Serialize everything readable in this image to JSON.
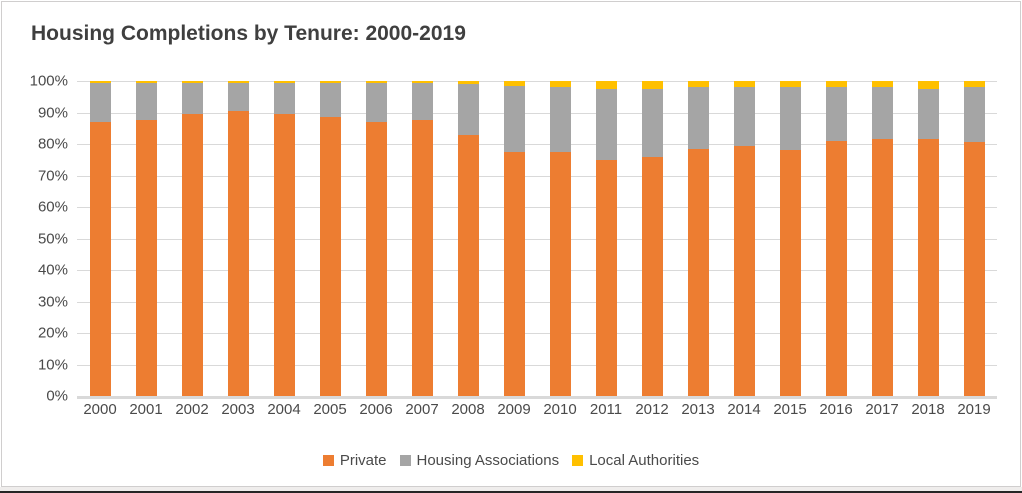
{
  "window": {
    "background_color": "#FFFFFF",
    "border_color": "#D0CECE",
    "bottom_edge_color": "#262626"
  },
  "chart_data": {
    "type": "bar",
    "subtype": "stacked-100-percent",
    "title": "Housing Completions by Tenure: 2000-2019",
    "xlabel": "",
    "ylabel": "",
    "ylim": [
      0,
      100
    ],
    "grid": true,
    "gridline_color": "#D9D9D9",
    "legend_position": "bottom",
    "y_ticks": [
      "100%",
      "90%",
      "80%",
      "70%",
      "60%",
      "50%",
      "40%",
      "30%",
      "20%",
      "10%",
      "0%"
    ],
    "categories": [
      "2000",
      "2001",
      "2002",
      "2003",
      "2004",
      "2005",
      "2006",
      "2007",
      "2008",
      "2009",
      "2010",
      "2011",
      "2012",
      "2013",
      "2014",
      "2015",
      "2016",
      "2017",
      "2018",
      "2019"
    ],
    "series": [
      {
        "name": "Private",
        "color": "#ED7D31",
        "values": [
          87,
          87.5,
          89.5,
          90.5,
          89.5,
          88.5,
          87,
          87.5,
          83,
          77.5,
          77.5,
          75,
          76,
          78.5,
          79.5,
          78,
          81,
          81.5,
          81.5,
          80.5
        ]
      },
      {
        "name": "Housing Associations",
        "color": "#A5A5A5",
        "values": [
          12.5,
          12,
          10,
          9,
          10,
          11,
          12.5,
          12,
          16,
          21,
          20.5,
          22.5,
          21.5,
          19.5,
          18.5,
          20,
          17,
          16.5,
          16,
          17.5
        ]
      },
      {
        "name": "Local Authorities",
        "color": "#FFC000",
        "values": [
          0.5,
          0.5,
          0.5,
          0.5,
          0.5,
          0.5,
          0.5,
          0.5,
          1,
          1.5,
          2,
          2.5,
          2.5,
          2,
          2,
          2,
          2,
          2,
          2.5,
          2
        ]
      }
    ]
  }
}
